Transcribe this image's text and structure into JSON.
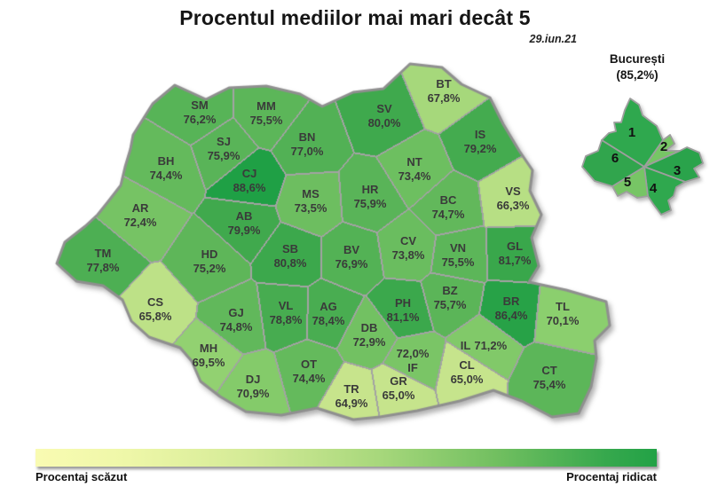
{
  "title": "Procentul mediilor mai mari decât 5",
  "date": "29.iun.21",
  "legend": {
    "low_label": "Procentaj scăzut",
    "high_label": "Procentaj ridicat"
  },
  "colors": {
    "outline_border": "#8f8f8f",
    "inner_border": "#a3a3a3",
    "scale_low": "#f7fa9f",
    "scale_high": "#1a9e44",
    "scale_stops": [
      [
        60,
        "#f7fa9f"
      ],
      [
        65,
        "#c6e48c"
      ],
      [
        70,
        "#8ccf6e"
      ],
      [
        75,
        "#5fb75a"
      ],
      [
        80,
        "#3fa94d"
      ],
      [
        90,
        "#1a9e44"
      ]
    ]
  },
  "map_data": {
    "type": "choropleth",
    "unit": "%",
    "regions": [
      {
        "code": "SM",
        "value": "76,2%"
      },
      {
        "code": "MM",
        "value": "75,5%"
      },
      {
        "code": "BT",
        "value": "67,8%"
      },
      {
        "code": "SV",
        "value": "80,0%"
      },
      {
        "code": "IS",
        "value": "79,2%"
      },
      {
        "code": "SJ",
        "value": "75,9%"
      },
      {
        "code": "BH",
        "value": "74,4%"
      },
      {
        "code": "BN",
        "value": "77,0%"
      },
      {
        "code": "CJ",
        "value": "88,6%"
      },
      {
        "code": "NT",
        "value": "73,4%"
      },
      {
        "code": "MS",
        "value": "73,5%"
      },
      {
        "code": "HR",
        "value": "75,9%"
      },
      {
        "code": "VS",
        "value": "66,3%"
      },
      {
        "code": "BC",
        "value": "74,7%"
      },
      {
        "code": "AR",
        "value": "72,4%"
      },
      {
        "code": "AB",
        "value": "79,9%"
      },
      {
        "code": "TM",
        "value": "77,8%"
      },
      {
        "code": "HD",
        "value": "75,2%"
      },
      {
        "code": "SB",
        "value": "80,8%"
      },
      {
        "code": "BV",
        "value": "76,9%"
      },
      {
        "code": "CV",
        "value": "73,8%"
      },
      {
        "code": "VN",
        "value": "75,5%"
      },
      {
        "code": "GL",
        "value": "81,7%"
      },
      {
        "code": "CS",
        "value": "65,8%"
      },
      {
        "code": "GJ",
        "value": "74,8%"
      },
      {
        "code": "VL",
        "value": "78,8%"
      },
      {
        "code": "AG",
        "value": "78,4%"
      },
      {
        "code": "DB",
        "value": "72,9%"
      },
      {
        "code": "PH",
        "value": "81,1%"
      },
      {
        "code": "BZ",
        "value": "75,7%"
      },
      {
        "code": "BR",
        "value": "86,4%"
      },
      {
        "code": "TL",
        "value": "70,1%"
      },
      {
        "code": "MH",
        "value": "69,5%"
      },
      {
        "code": "DJ",
        "value": "70,9%"
      },
      {
        "code": "OT",
        "value": "74,4%"
      },
      {
        "code": "TR",
        "value": "64,9%"
      },
      {
        "code": "GR",
        "value": "65,0%"
      },
      {
        "code": "IF",
        "value": "72,0%"
      },
      {
        "code": "CL",
        "value": "65,0%"
      },
      {
        "code": "IL",
        "value": "71,2%"
      },
      {
        "code": "CT",
        "value": "75,4%"
      }
    ]
  },
  "bucharest": {
    "name": "București",
    "value": "(85,2%)",
    "sectors": [
      "1",
      "2",
      "3",
      "4",
      "5",
      "6"
    ],
    "sector_colors": [
      "#2fa84e",
      "#77c565",
      "#2aa34b",
      "#2fa84e",
      "#77c565",
      "#31a54d"
    ]
  }
}
